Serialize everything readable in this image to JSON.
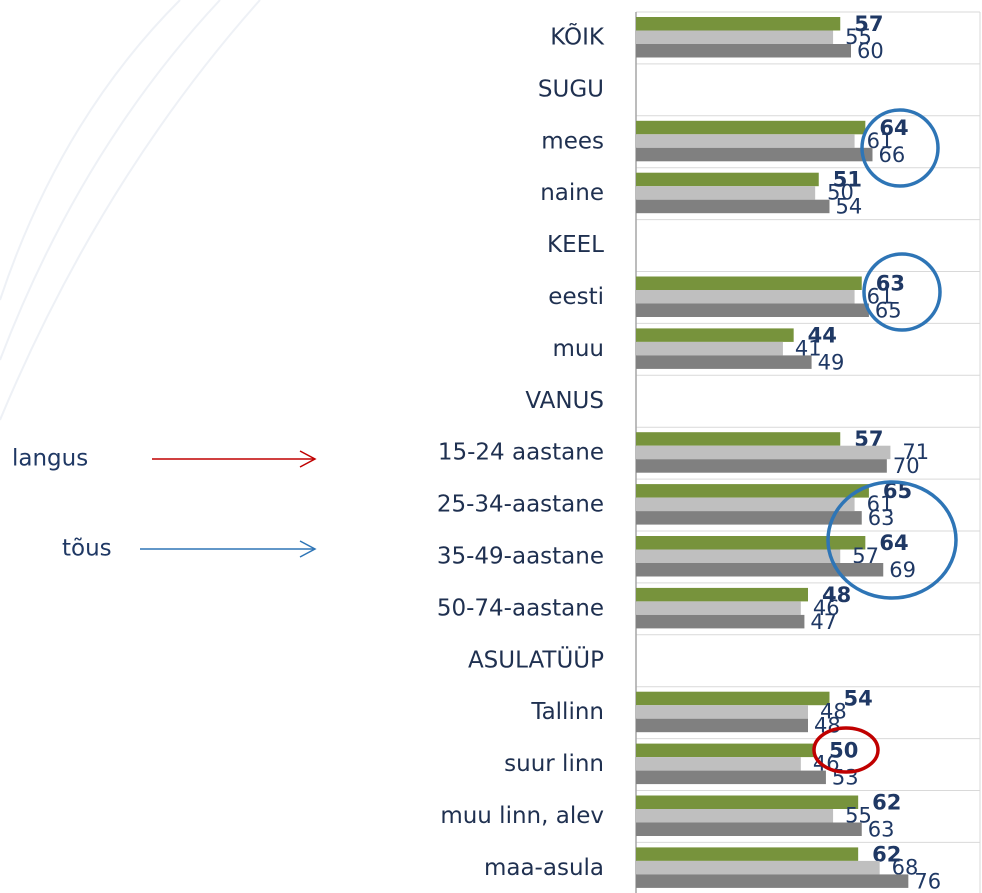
{
  "chart_data": {
    "type": "bar",
    "orientation": "horizontal",
    "categories": [
      "KÕIK",
      "SUGU",
      "mees",
      "naine",
      "KEEL",
      "eesti",
      "muu",
      "VANUS",
      "15-24 aastane",
      "25-34-aastane",
      "35-49-aastane",
      "50-74-aastane",
      "ASULATÜÜP",
      "Tallinn",
      "suur linn",
      "muu linn, alev",
      "maa-asula"
    ],
    "series": [
      {
        "color": "#77933c",
        "values": [
          57,
          null,
          64,
          51,
          null,
          63,
          44,
          null,
          57,
          65,
          64,
          48,
          null,
          54,
          50,
          62,
          62
        ]
      },
      {
        "color": "#bfbfbf",
        "values": [
          55,
          null,
          61,
          50,
          null,
          61,
          41,
          null,
          71,
          61,
          57,
          46,
          null,
          48,
          46,
          55,
          68
        ]
      },
      {
        "color": "#808080",
        "values": [
          60,
          null,
          66,
          54,
          null,
          65,
          49,
          null,
          70,
          63,
          69,
          47,
          null,
          48,
          53,
          63,
          76
        ]
      }
    ],
    "xlim": [
      0,
      96
    ],
    "annotations": [
      "langus",
      "tõus"
    ]
  }
}
